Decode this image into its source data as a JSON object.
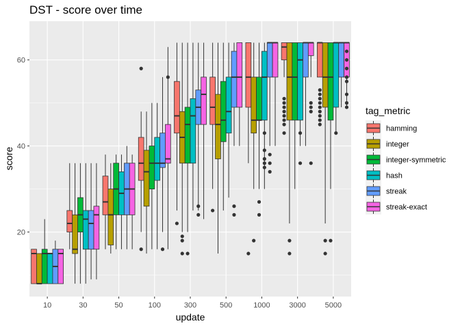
{
  "chart_data": {
    "type": "boxplot",
    "title": "DST - score over time",
    "xlabel": "update",
    "ylabel": "score",
    "categories": [
      "10",
      "30",
      "50",
      "100",
      "300",
      "500",
      "1000",
      "3000",
      "5000"
    ],
    "ylim": [
      5,
      69
    ],
    "yticks": [
      20,
      40,
      60
    ],
    "grid": true,
    "legend": {
      "title": "tag_metric",
      "position": "right"
    },
    "series": [
      {
        "name": "hamming",
        "color": "#F8766D",
        "boxes": [
          {
            "q1": 8,
            "median": 15,
            "q3": 16,
            "lo": 8,
            "hi": 16,
            "outliers": []
          },
          {
            "q1": 20,
            "median": 22,
            "q3": 25,
            "lo": 16,
            "hi": 36,
            "outliers": []
          },
          {
            "q1": 24,
            "median": 27,
            "q3": 33,
            "lo": 16,
            "hi": 38,
            "outliers": []
          },
          {
            "q1": 32,
            "median": 36,
            "q3": 42,
            "lo": 20,
            "hi": 48,
            "outliers": [
              16,
              58
            ]
          },
          {
            "q1": 43,
            "median": 47,
            "q3": 55,
            "lo": 25,
            "hi": 64,
            "outliers": [
              22
            ]
          },
          {
            "q1": 45,
            "median": 49,
            "q3": 56,
            "lo": 30,
            "hi": 64,
            "outliers": [
              25
            ]
          },
          {
            "q1": 49,
            "median": 56,
            "q3": 64,
            "lo": 36,
            "hi": 64,
            "outliers": [
              15
            ]
          },
          {
            "q1": 60,
            "median": 63,
            "q3": 64,
            "lo": 56,
            "hi": 64,
            "outliers": [
              43,
              45,
              46,
              47,
              48,
              49,
              50,
              51
            ]
          },
          {
            "q1": 56,
            "median": 64,
            "q3": 64,
            "lo": 56,
            "hi": 64,
            "outliers": [
              45,
              46,
              47,
              48,
              49,
              50,
              51,
              52,
              53
            ]
          }
        ]
      },
      {
        "name": "integer",
        "color": "#B79F00",
        "boxes": [
          {
            "q1": 8,
            "median": 8,
            "q3": 15,
            "lo": 8,
            "hi": 15,
            "outliers": []
          },
          {
            "q1": 15,
            "median": 16,
            "q3": 24,
            "lo": 8,
            "hi": 36,
            "outliers": []
          },
          {
            "q1": 17,
            "median": 24,
            "q3": 30,
            "lo": 15,
            "hi": 36,
            "outliers": []
          },
          {
            "q1": 26,
            "median": 34,
            "q3": 39,
            "lo": 15,
            "hi": 48,
            "outliers": []
          },
          {
            "q1": 36,
            "median": 42,
            "q3": 48,
            "lo": 20,
            "hi": 64,
            "outliers": [
              15,
              18,
              19
            ]
          },
          {
            "q1": 37,
            "median": 45,
            "q3": 52,
            "lo": 15,
            "hi": 64,
            "outliers": []
          },
          {
            "q1": 43,
            "median": 46,
            "q3": 56,
            "lo": 30,
            "hi": 64,
            "outliers": [
              18
            ]
          },
          {
            "q1": 46,
            "median": 56,
            "q3": 64,
            "lo": 22,
            "hi": 64,
            "outliers": [
              15,
              18
            ]
          },
          {
            "q1": 49,
            "median": 56,
            "q3": 64,
            "lo": 22,
            "hi": 64,
            "outliers": [
              15,
              18
            ]
          }
        ]
      },
      {
        "name": "integer-symmetric",
        "color": "#00BA38",
        "boxes": [
          {
            "q1": 8,
            "median": 15,
            "q3": 16,
            "lo": 8,
            "hi": 23,
            "outliers": []
          },
          {
            "q1": 20,
            "median": 24,
            "q3": 28,
            "lo": 8,
            "hi": 36,
            "outliers": []
          },
          {
            "q1": 24,
            "median": 30,
            "q3": 36,
            "lo": 16,
            "hi": 38,
            "outliers": []
          },
          {
            "q1": 30,
            "median": 36,
            "q3": 40,
            "lo": 16,
            "hi": 50,
            "outliers": []
          },
          {
            "q1": 36,
            "median": 45,
            "q3": 49,
            "lo": 20,
            "hi": 64,
            "outliers": [
              15
            ]
          },
          {
            "q1": 41,
            "median": 46,
            "q3": 55,
            "lo": 25,
            "hi": 64,
            "outliers": []
          },
          {
            "q1": 46,
            "median": 46,
            "q3": 56,
            "lo": 30,
            "hi": 64,
            "outliers": [
              27,
              24
            ]
          },
          {
            "q1": 46,
            "median": 56,
            "q3": 64,
            "lo": 30,
            "hi": 64,
            "outliers": []
          },
          {
            "q1": 46,
            "median": 56,
            "q3": 64,
            "lo": 30,
            "hi": 64,
            "outliers": [
              18
            ]
          }
        ]
      },
      {
        "name": "hash",
        "color": "#00BFC4",
        "boxes": [
          {
            "q1": 8,
            "median": 15,
            "q3": 15,
            "lo": 8,
            "hi": 15,
            "outliers": []
          },
          {
            "q1": 16,
            "median": 23,
            "q3": 25,
            "lo": 8,
            "hi": 36,
            "outliers": []
          },
          {
            "q1": 24,
            "median": 29,
            "q3": 34,
            "lo": 16,
            "hi": 38,
            "outliers": []
          },
          {
            "q1": 32,
            "median": 36,
            "q3": 42,
            "lo": 16,
            "hi": 50,
            "outliers": []
          },
          {
            "q1": 36,
            "median": 47,
            "q3": 51,
            "lo": 25,
            "hi": 64,
            "outliers": []
          },
          {
            "q1": 43,
            "median": 48,
            "q3": 56,
            "lo": 28,
            "hi": 64,
            "outliers": []
          },
          {
            "q1": 46,
            "median": 56,
            "q3": 62,
            "lo": 30,
            "hi": 64,
            "outliers": [
              43,
              39,
              37,
              36,
              35
            ]
          },
          {
            "q1": 46,
            "median": 60,
            "q3": 64,
            "lo": 40,
            "hi": 64,
            "outliers": [
              43,
              36
            ]
          },
          {
            "q1": 49,
            "median": 64,
            "q3": 64,
            "lo": 43,
            "hi": 64,
            "outliers": [
              43
            ]
          }
        ]
      },
      {
        "name": "streak",
        "color": "#619CFF",
        "boxes": [
          {
            "q1": 8,
            "median": 12,
            "q3": 16,
            "lo": 8,
            "hi": 18,
            "outliers": []
          },
          {
            "q1": 16,
            "median": 22,
            "q3": 25,
            "lo": 9,
            "hi": 36,
            "outliers": []
          },
          {
            "q1": 24,
            "median": 30,
            "q3": 36,
            "lo": 16,
            "hi": 40,
            "outliers": []
          },
          {
            "q1": 35,
            "median": 36,
            "q3": 43,
            "lo": 20,
            "hi": 56,
            "outliers": [
              16
            ]
          },
          {
            "q1": 45,
            "median": 49,
            "q3": 53,
            "lo": 25,
            "hi": 64,
            "outliers": [
              24,
              26
            ]
          },
          {
            "q1": 49,
            "median": 56,
            "q3": 62,
            "lo": 40,
            "hi": 64,
            "outliers": [
              26,
              24
            ]
          },
          {
            "q1": 56,
            "median": 64,
            "q3": 64,
            "lo": 40,
            "hi": 64,
            "outliers": [
              36,
              34,
              38
            ]
          },
          {
            "q1": 56,
            "median": 64,
            "q3": 64,
            "lo": 40,
            "hi": 64,
            "outliers": []
          },
          {
            "q1": 56,
            "median": 64,
            "q3": 64,
            "lo": 49,
            "hi": 64,
            "outliers": []
          }
        ]
      },
      {
        "name": "streak-exact",
        "color": "#F564E3",
        "boxes": [
          {
            "q1": 8,
            "median": 15,
            "q3": 16,
            "lo": 8,
            "hi": 16,
            "outliers": []
          },
          {
            "q1": 16,
            "median": 24,
            "q3": 26,
            "lo": 9,
            "hi": 36,
            "outliers": []
          },
          {
            "q1": 24,
            "median": 30,
            "q3": 36,
            "lo": 16,
            "hi": 38,
            "outliers": []
          },
          {
            "q1": 36,
            "median": 37,
            "q3": 45,
            "lo": 16,
            "hi": 63,
            "outliers": [
              56
            ]
          },
          {
            "q1": 45,
            "median": 52,
            "q3": 56,
            "lo": 23,
            "hi": 64,
            "outliers": []
          },
          {
            "q1": 49,
            "median": 56,
            "q3": 64,
            "lo": 40,
            "hi": 64,
            "outliers": []
          },
          {
            "q1": 56,
            "median": 64,
            "q3": 64,
            "lo": 40,
            "hi": 64,
            "outliers": []
          },
          {
            "q1": 61,
            "median": 64,
            "q3": 64,
            "lo": 56,
            "hi": 64,
            "outliers": [
              36,
              48,
              49,
              50
            ]
          },
          {
            "q1": 56,
            "median": 64,
            "q3": 64,
            "lo": 49,
            "hi": 64,
            "outliers": [
              49,
              50,
              52,
              55,
              56,
              58,
              60,
              62
            ]
          }
        ]
      }
    ]
  }
}
